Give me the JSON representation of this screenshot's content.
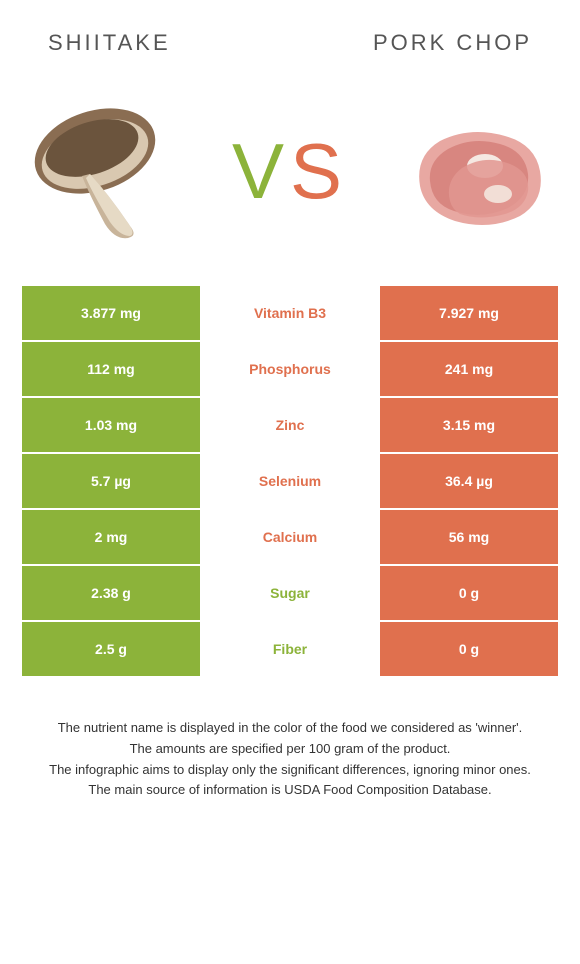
{
  "header": {
    "left_title": "Shiitake",
    "right_title": "Pork chop"
  },
  "vs": {
    "v": "V",
    "s": "S"
  },
  "colors": {
    "left": "#8cb33a",
    "right": "#e0704e",
    "bg": "#ffffff",
    "text": "#333333"
  },
  "rows": [
    {
      "nutrient": "Vitamin B3",
      "left": "3.877 mg",
      "right": "7.927 mg",
      "winner": "right"
    },
    {
      "nutrient": "Phosphorus",
      "left": "112 mg",
      "right": "241 mg",
      "winner": "right"
    },
    {
      "nutrient": "Zinc",
      "left": "1.03 mg",
      "right": "3.15 mg",
      "winner": "right"
    },
    {
      "nutrient": "Selenium",
      "left": "5.7 µg",
      "right": "36.4 µg",
      "winner": "right"
    },
    {
      "nutrient": "Calcium",
      "left": "2 mg",
      "right": "56 mg",
      "winner": "right"
    },
    {
      "nutrient": "Sugar",
      "left": "2.38 g",
      "right": "0 g",
      "winner": "left"
    },
    {
      "nutrient": "Fiber",
      "left": "2.5 g",
      "right": "0 g",
      "winner": "left"
    }
  ],
  "footer": [
    "The nutrient name is displayed in the color of the food we considered as 'winner'.",
    "The amounts are specified per 100 gram of the product.",
    "The infographic aims to display only the significant differences, ignoring minor ones.",
    "The main source of information is USDA Food Composition Database."
  ]
}
